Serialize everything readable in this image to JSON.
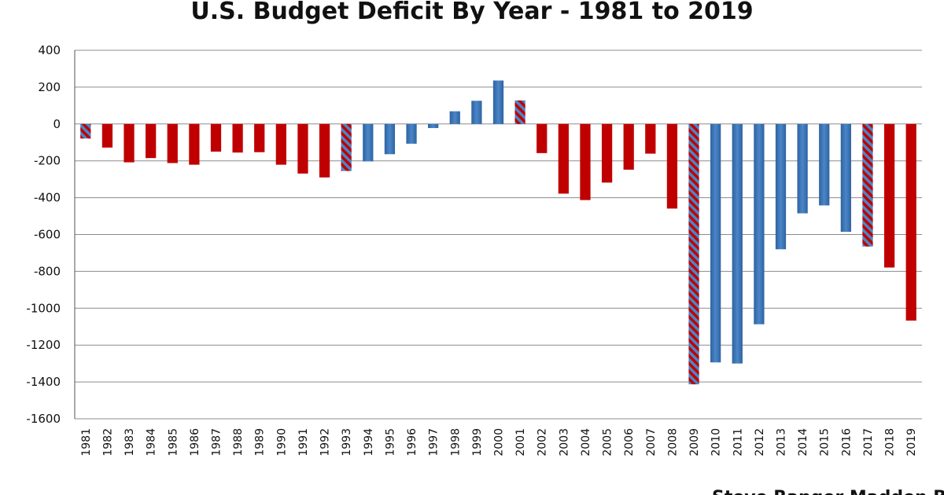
{
  "chart_data": {
    "type": "bar",
    "title": "U.S. Budget Deficit By Year - 1981 to 2019",
    "xlabel": "",
    "ylabel": "",
    "ylim": [
      -1600,
      400
    ],
    "yticks": [
      400,
      200,
      0,
      -200,
      -400,
      -600,
      -800,
      -1000,
      -1200,
      -1400,
      -1600
    ],
    "grid": true,
    "legend": "none",
    "categories": [
      "1981",
      "1982",
      "1983",
      "1984",
      "1985",
      "1986",
      "1987",
      "1988",
      "1989",
      "1990",
      "1991",
      "1992",
      "1993",
      "1994",
      "1995",
      "1996",
      "1997",
      "1998",
      "1999",
      "2000",
      "2001",
      "2002",
      "2003",
      "2004",
      "2005",
      "2006",
      "2007",
      "2008",
      "2009",
      "2010",
      "2011",
      "2012",
      "2013",
      "2014",
      "2015",
      "2016",
      "2017",
      "2018",
      "2019"
    ],
    "values": [
      -79,
      -128,
      -208,
      -185,
      -212,
      -221,
      -150,
      -155,
      -153,
      -221,
      -269,
      -290,
      -255,
      -203,
      -164,
      -107,
      -22,
      69,
      126,
      236,
      128,
      -158,
      -378,
      -413,
      -318,
      -248,
      -161,
      -459,
      -1413,
      -1294,
      -1300,
      -1087,
      -680,
      -485,
      -442,
      -585,
      -665,
      -779,
      -1067
    ],
    "bar_styles": [
      "striped",
      "red",
      "red",
      "red",
      "red",
      "red",
      "red",
      "red",
      "red",
      "red",
      "red",
      "red",
      "striped",
      "blue",
      "blue",
      "blue",
      "blue",
      "blue",
      "blue",
      "blue",
      "striped",
      "red",
      "red",
      "red",
      "red",
      "red",
      "red",
      "red",
      "striped",
      "blue",
      "blue",
      "blue",
      "blue",
      "blue",
      "blue",
      "blue",
      "striped",
      "red",
      "red"
    ],
    "colors": {
      "red": "#c00000",
      "blue": "#4a86c8",
      "blue_dark": "#2e62a0",
      "stripe_a": "#c00000",
      "stripe_b": "#4a86c8"
    }
  },
  "credit": "Steve Ranger Madden Blog"
}
